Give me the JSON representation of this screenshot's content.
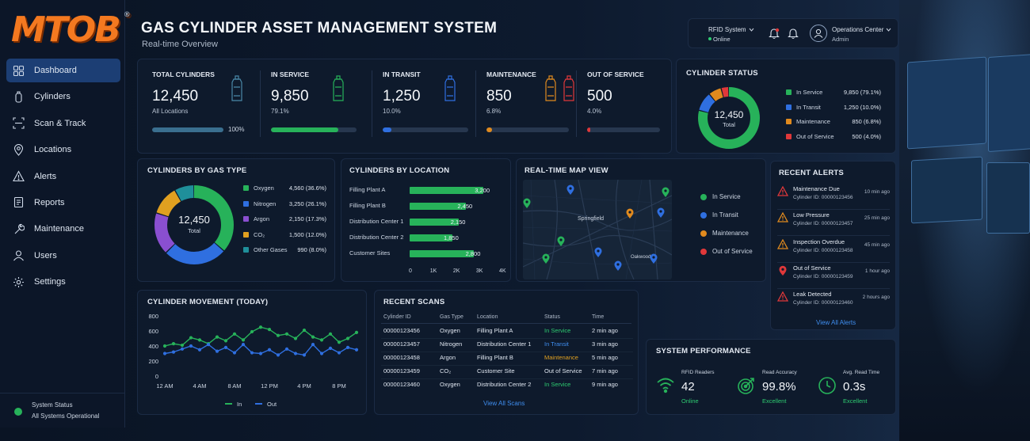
{
  "brand": {
    "logo_text": "MTOB",
    "registered": "®"
  },
  "header": {
    "title": "GAS CYLINDER ASSET MANAGEMENT SYSTEM",
    "subtitle": "Real-time Overview"
  },
  "topbar": {
    "rfid_label": "RFID System",
    "rfid_status": "Online",
    "user_name": "Operations Center",
    "user_role": "Admin",
    "icons": [
      "bell-alert-icon",
      "bell-icon",
      "user-icon",
      "chevron-down-icon"
    ]
  },
  "sidebar": {
    "items": [
      {
        "label": "Dashboard",
        "icon": "dashboard-icon",
        "active": true
      },
      {
        "label": "Cylinders",
        "icon": "cylinder-icon"
      },
      {
        "label": "Scan & Track",
        "icon": "scan-icon"
      },
      {
        "label": "Locations",
        "icon": "location-icon"
      },
      {
        "label": "Alerts",
        "icon": "alert-icon"
      },
      {
        "label": "Reports",
        "icon": "reports-icon"
      },
      {
        "label": "Maintenance",
        "icon": "maintenance-icon"
      },
      {
        "label": "Users",
        "icon": "users-icon"
      },
      {
        "label": "Settings",
        "icon": "settings-icon"
      }
    ],
    "system_status_label": "System Status",
    "system_status_value": "All Systems Operational"
  },
  "kpis": [
    {
      "label": "TOTAL CYLINDERS",
      "value": "12,450",
      "sub": "All Locations",
      "pct_text": "100%",
      "fill": 1.0,
      "color": "#3a6f8f"
    },
    {
      "label": "IN SERVICE",
      "value": "9,850",
      "sub": "79.1%",
      "pct_text": "",
      "fill": 0.79,
      "color": "#27b25a"
    },
    {
      "label": "IN TRANSIT",
      "value": "1,250",
      "sub": "10.0%",
      "pct_text": "",
      "fill": 0.1,
      "color": "#2f6fe0"
    },
    {
      "label": "MAINTENANCE",
      "value": "850",
      "sub": "6.8%",
      "pct_text": "",
      "fill": 0.068,
      "color": "#e08a1e"
    },
    {
      "label": "OUT OF SERVICE",
      "value": "500",
      "sub": "4.0%",
      "pct_text": "",
      "fill": 0.04,
      "color": "#e0383a"
    }
  ],
  "cylinder_status": {
    "title": "CYLINDER STATUS",
    "center_value": "12,450",
    "center_label": "Total",
    "items": [
      {
        "label": "In Service",
        "value": "9,850 (79.1%)",
        "color": "#27b25a",
        "share": 79.1
      },
      {
        "label": "In Transit",
        "value": "1,250 (10.0%)",
        "color": "#2f6fe0",
        "share": 10.0
      },
      {
        "label": "Maintenance",
        "value": "850 (6.8%)",
        "color": "#e08a1e",
        "share": 6.8
      },
      {
        "label": "Out of Service",
        "value": "500 (4.0%)",
        "color": "#e0383a",
        "share": 4.0
      }
    ]
  },
  "gas_type": {
    "title": "CYLINDERS BY GAS TYPE",
    "center_value": "12,450",
    "center_label": "Total",
    "items": [
      {
        "label": "Oxygen",
        "value": "4,560 (36.6%)",
        "color": "#27b25a",
        "share": 36.6
      },
      {
        "label": "Nitrogen",
        "value": "3,250 (26.1%)",
        "color": "#2f6fe0",
        "share": 26.1
      },
      {
        "label": "Argon",
        "value": "2,150 (17.3%)",
        "color": "#8a4fd0",
        "share": 17.3
      },
      {
        "label": "CO₂",
        "value": "1,500 (12.0%)",
        "color": "#e0a020",
        "share": 12.0
      },
      {
        "label": "Other Gases",
        "value": "990 (8.0%)",
        "color": "#1f8f9a",
        "share": 8.0
      }
    ]
  },
  "by_location": {
    "title": "CYLINDERS BY LOCATION",
    "color": "#27b25a",
    "items": [
      {
        "label": "Filling Plant A",
        "value": 3200,
        "value_text": "3,200"
      },
      {
        "label": "Filling Plant B",
        "value": 2450,
        "value_text": "2,450"
      },
      {
        "label": "Distribution Center 1",
        "value": 2150,
        "value_text": "2,150"
      },
      {
        "label": "Distribution Center 2",
        "value": 1850,
        "value_text": "1,850"
      },
      {
        "label": "Customer Sites",
        "value": 2800,
        "value_text": "2,800"
      }
    ],
    "ticks": [
      "0",
      "1K",
      "2K",
      "3K",
      "4K"
    ],
    "xmax": 4000
  },
  "map": {
    "title": "REAL-TIME MAP VIEW",
    "city_labels": [
      "Springfield",
      "Oakwood"
    ],
    "legend": [
      {
        "label": "In Service",
        "color": "#27b25a"
      },
      {
        "label": "In Transit",
        "color": "#2f6fe0"
      },
      {
        "label": "Maintenance",
        "color": "#e08a1e"
      },
      {
        "label": "Out of Service",
        "color": "#e0383a"
      }
    ]
  },
  "alerts": {
    "title": "RECENT ALERTS",
    "link": "View All Alerts",
    "items": [
      {
        "title": "Maintenance Due",
        "detail": "Cylinder ID: 00000123456",
        "time": "10 min ago",
        "color": "#e0383a",
        "icon": "warning-icon"
      },
      {
        "title": "Low Pressure",
        "detail": "Cylinder ID: 00000123457",
        "time": "25 min ago",
        "color": "#e08a1e",
        "icon": "warning-icon"
      },
      {
        "title": "Inspection Overdue",
        "detail": "Cylinder ID: 00000123458",
        "time": "45 min ago",
        "color": "#e08a1e",
        "icon": "warning-icon"
      },
      {
        "title": "Out of Service",
        "detail": "Cylinder ID: 00000123459",
        "time": "1 hour ago",
        "color": "#e0383a",
        "icon": "location-pin-icon"
      },
      {
        "title": "Leak Detected",
        "detail": "Cylinder ID: 00000123460",
        "time": "2 hours ago",
        "color": "#e0383a",
        "icon": "warning-icon"
      }
    ]
  },
  "chart_data": {
    "type": "line",
    "title": "CYLINDER MOVEMENT (TODAY)",
    "x": [
      "12 AM",
      "1 AM",
      "2 AM",
      "3 AM",
      "4 AM",
      "5 AM",
      "6 AM",
      "7 AM",
      "8 AM",
      "9 AM",
      "10 AM",
      "11 AM",
      "12 PM",
      "1 PM",
      "2 PM",
      "3 PM",
      "4 PM",
      "5 PM",
      "6 PM",
      "7 PM",
      "8 PM",
      "9 PM",
      "10 PM"
    ],
    "tick_labels": [
      "12 AM",
      "4 AM",
      "8 AM",
      "12 PM",
      "4 PM",
      "8 PM"
    ],
    "yticks": [
      "0",
      "200",
      "400",
      "600",
      "800"
    ],
    "ylim": [
      0,
      800
    ],
    "series": [
      {
        "name": "In",
        "color": "#27b25a",
        "values": [
          400,
          430,
          410,
          510,
          480,
          430,
          520,
          470,
          560,
          480,
          590,
          650,
          620,
          540,
          560,
          500,
          610,
          520,
          480,
          560,
          450,
          500,
          580
        ]
      },
      {
        "name": "Out",
        "color": "#2f6fe0",
        "values": [
          300,
          320,
          360,
          400,
          350,
          420,
          330,
          380,
          310,
          420,
          310,
          300,
          350,
          280,
          360,
          300,
          280,
          420,
          300,
          370,
          310,
          380,
          350
        ]
      }
    ]
  },
  "recent_scans": {
    "title": "RECENT SCANS",
    "columns": [
      "Cylinder ID",
      "Gas Type",
      "Location",
      "Status",
      "Time"
    ],
    "rows": [
      {
        "id": "00000123456",
        "gas": "Oxygen",
        "location": "Filling Plant A",
        "status": "In Service",
        "time": "2 min ago",
        "status_color": "#2ecc71"
      },
      {
        "id": "00000123457",
        "gas": "Nitrogen",
        "location": "Distribution Center 1",
        "status": "In Transit",
        "time": "3 min ago",
        "status_color": "#3f8ef0"
      },
      {
        "id": "00000123458",
        "gas": "Argon",
        "location": "Filling Plant B",
        "status": "Maintenance",
        "time": "5 min ago",
        "status_color": "#e0a020"
      },
      {
        "id": "00000123459",
        "gas": "CO₂",
        "location": "Customer Site",
        "status": "Out of Service",
        "time": "7 min ago",
        "status_color": "#dfe6f0"
      },
      {
        "id": "00000123460",
        "gas": "Oxygen",
        "location": "Distribution Center 2",
        "status": "In Service",
        "time": "9 min ago",
        "status_color": "#2ecc71"
      }
    ],
    "link": "View All Scans"
  },
  "performance": {
    "title": "SYSTEM PERFORMANCE",
    "items": [
      {
        "label": "RFID Readers",
        "value": "42",
        "sub": "Online",
        "icon": "wifi-icon"
      },
      {
        "label": "Read Accuracy",
        "value": "99.8%",
        "sub": "Excellent",
        "icon": "target-icon"
      },
      {
        "label": "Avg. Read Time",
        "value": "0.3s",
        "sub": "Excellent",
        "icon": "clock-icon"
      }
    ]
  }
}
